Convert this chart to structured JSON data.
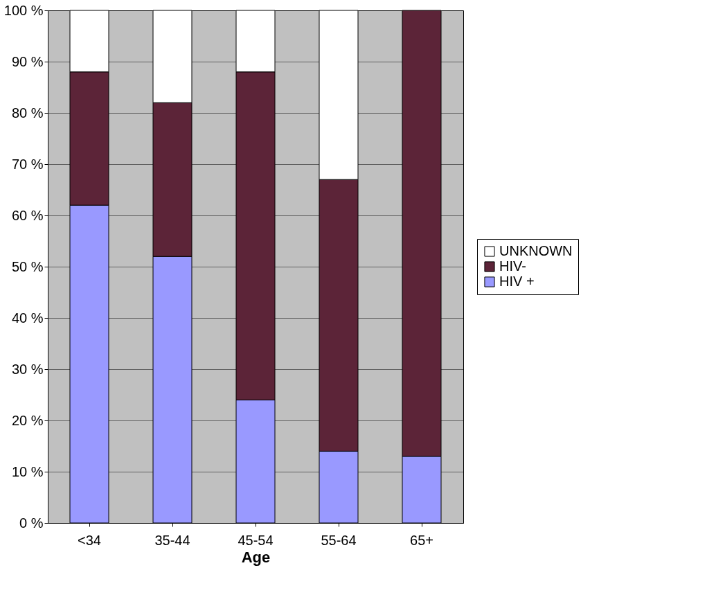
{
  "chart_data": {
    "type": "bar",
    "stacked": true,
    "xlabel": "Age",
    "categories": [
      "<34",
      "35-44",
      "45-54",
      "55-64",
      "65+"
    ],
    "series": [
      {
        "name": "HIV +",
        "color": "#9999ff",
        "values": [
          62,
          52,
          24,
          14,
          13
        ]
      },
      {
        "name": "HIV-",
        "color": "#5c2438",
        "values": [
          26,
          30,
          64,
          53,
          87
        ]
      },
      {
        "name": "UNKNOWN",
        "color": "#ffffff",
        "values": [
          12,
          18,
          12,
          33,
          0
        ]
      }
    ],
    "ylim": [
      0,
      100
    ],
    "yticks": [
      {
        "value": 0,
        "label": "0 %"
      },
      {
        "value": 10,
        "label": "10 %"
      },
      {
        "value": 20,
        "label": "20 %"
      },
      {
        "value": 30,
        "label": "30 %"
      },
      {
        "value": 40,
        "label": "40 %"
      },
      {
        "value": 50,
        "label": "50 %"
      },
      {
        "value": 60,
        "label": "60 %"
      },
      {
        "value": 70,
        "label": "70 %"
      },
      {
        "value": 80,
        "label": "80 %"
      },
      {
        "value": 90,
        "label": "90 %"
      },
      {
        "value": 100,
        "label": "100 %"
      }
    ],
    "grid": "y",
    "legend": "right"
  }
}
